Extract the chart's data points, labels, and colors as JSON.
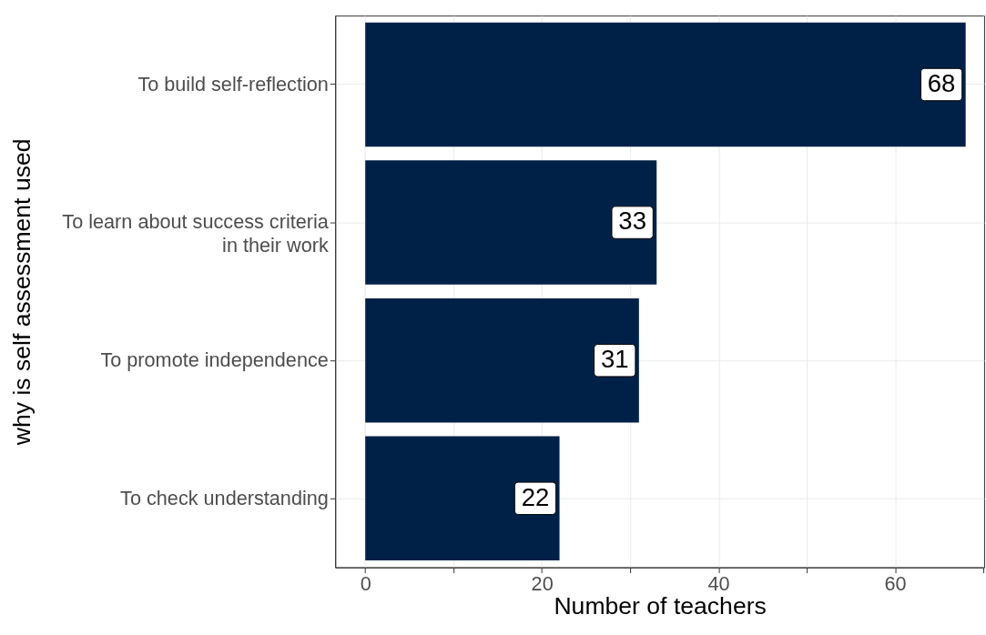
{
  "chart_data": {
    "type": "bar",
    "orientation": "horizontal",
    "xlabel": "Number of teachers",
    "ylabel": "why is self assessment used",
    "categories": [
      "To build self-reflection",
      "To learn about success criteria\nin their work",
      "To promote independence",
      "To check understanding"
    ],
    "values": [
      68,
      33,
      31,
      22
    ],
    "color": "#002147",
    "xlim": [
      -3.4,
      70.1
    ],
    "xticks": [
      0,
      {
        "value": 10,
        "label": null
      },
      20,
      {
        "value": 30,
        "label": null
      },
      40,
      {
        "value": 50,
        "label": null
      },
      60,
      {
        "value": 70,
        "label": null
      }
    ],
    "grid": true,
    "data_labels": true
  }
}
